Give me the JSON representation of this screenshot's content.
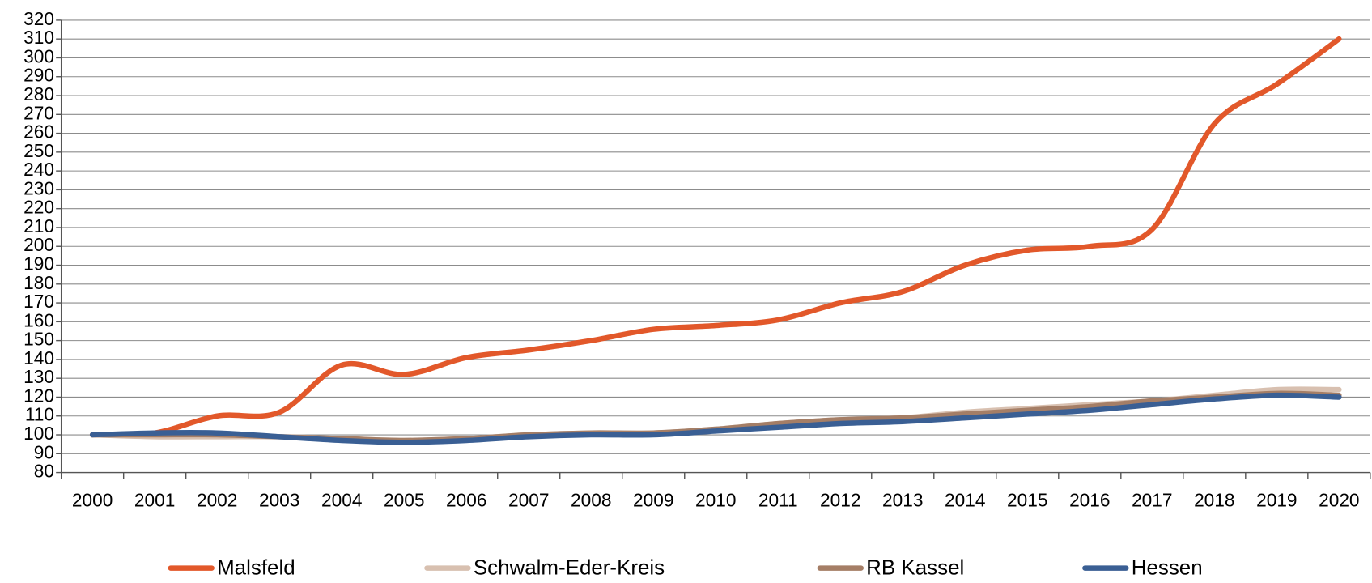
{
  "chart_data": {
    "type": "line",
    "categories": [
      "2000",
      "2001",
      "2002",
      "2003",
      "2004",
      "2005",
      "2006",
      "2007",
      "2008",
      "2009",
      "2010",
      "2011",
      "2012",
      "2013",
      "2014",
      "2015",
      "2016",
      "2017",
      "2018",
      "2019",
      "2020"
    ],
    "series": [
      {
        "name": "Malsfeld",
        "color": "#e2582a",
        "values": [
          100,
          101,
          110,
          112,
          137,
          132,
          141,
          145,
          150,
          156,
          158,
          161,
          170,
          176,
          190,
          198,
          200,
          209,
          265,
          286,
          310
        ]
      },
      {
        "name": "Schwalm-Eder-Kreis",
        "color": "#d8c0b0",
        "values": [
          100,
          99,
          99,
          99,
          98,
          97,
          98,
          100,
          101,
          101,
          103,
          106,
          108,
          109,
          112,
          114,
          116,
          118,
          121,
          124,
          124
        ]
      },
      {
        "name": "RB Kassel",
        "color": "#a57e66",
        "values": [
          100,
          100,
          100,
          99,
          98,
          97,
          98,
          100,
          101,
          101,
          103,
          106,
          108,
          109,
          111,
          113,
          115,
          118,
          120,
          122,
          121
        ]
      },
      {
        "name": "Hessen",
        "color": "#3a5f94",
        "values": [
          100,
          101,
          101,
          99,
          97,
          96,
          97,
          99,
          100,
          100,
          102,
          104,
          106,
          107,
          109,
          111,
          113,
          116,
          119,
          121,
          120
        ]
      }
    ],
    "ylim": [
      80,
      320
    ],
    "yticks": [
      80,
      90,
      100,
      110,
      120,
      130,
      140,
      150,
      160,
      170,
      180,
      190,
      200,
      210,
      220,
      230,
      240,
      250,
      260,
      270,
      280,
      290,
      300,
      310,
      320
    ],
    "grid": true,
    "legend": "bottom"
  }
}
